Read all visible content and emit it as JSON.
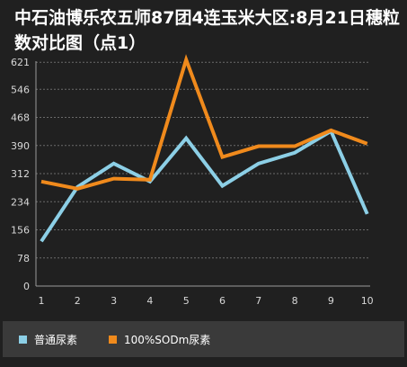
{
  "chart_data": {
    "type": "line",
    "title": "中石油博乐农五师87团4连玉米大区:8月21日穗粒数对比图（点1）",
    "xlabel": "",
    "ylabel": "",
    "x": [
      1,
      2,
      3,
      4,
      5,
      6,
      7,
      8,
      9,
      10
    ],
    "x_tick_labels": [
      "1",
      "2",
      "3",
      "4",
      "5",
      "6",
      "7",
      "8",
      "9",
      "10"
    ],
    "y_ticks": [
      0,
      78,
      156,
      234,
      312,
      390,
      468,
      546,
      621
    ],
    "y_tick_labels": [
      "0",
      "78",
      "156",
      "234",
      "312",
      "390",
      "468",
      "546",
      "621"
    ],
    "ylim": [
      0,
      624
    ],
    "grid": "horizontal dashed",
    "legend_position": "bottom",
    "series": [
      {
        "name": "普通尿素",
        "color": "#8ccfe6",
        "values": [
          124,
          275,
          340,
          290,
          410,
          278,
          340,
          370,
          430,
          200
        ]
      },
      {
        "name": "100%SODm尿素",
        "color": "#f08a1c",
        "values": [
          290,
          270,
          298,
          295,
          628,
          358,
          388,
          388,
          432,
          395
        ]
      }
    ]
  }
}
